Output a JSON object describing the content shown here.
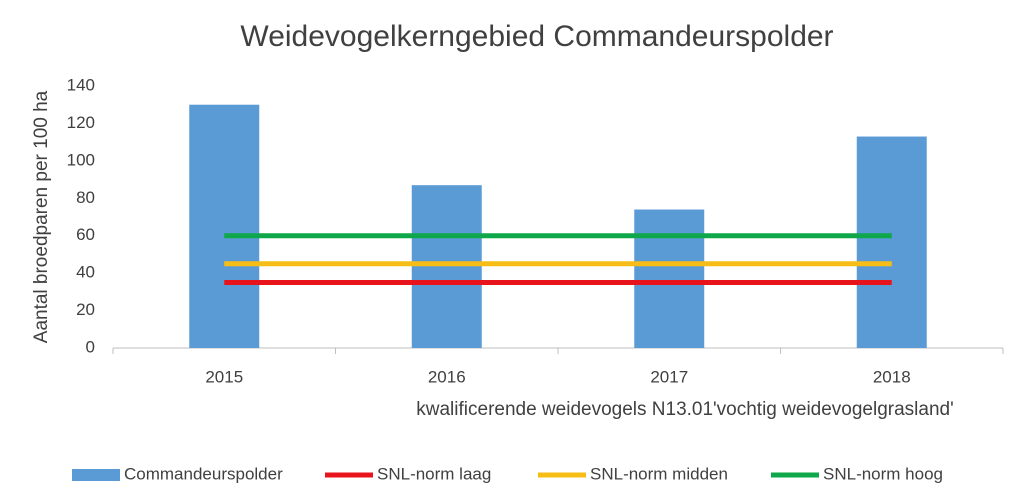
{
  "chart_data": {
    "type": "bar",
    "title": "Weidevogelkerngebied Commandeurspolder",
    "y_label": "Aantal broedparen per 100 ha",
    "x_label": "kwalificerende weidevogels N13.01'vochtig weidevogelgrasland'",
    "categories": [
      "2015",
      "2016",
      "2017",
      "2018"
    ],
    "series": [
      {
        "name": "Commandeurspolder",
        "type": "bar",
        "color": "#5b9bd5",
        "values": [
          130,
          87,
          74,
          113
        ]
      },
      {
        "name": "SNL-norm laag",
        "type": "line",
        "color": "#e8141b",
        "values": [
          35,
          35,
          35,
          35
        ]
      },
      {
        "name": "SNL-norm midden",
        "type": "line",
        "color": "#f6bd16",
        "values": [
          45,
          45,
          45,
          45
        ]
      },
      {
        "name": "SNL-norm hoog",
        "type": "line",
        "color": "#0ea84a",
        "values": [
          60,
          60,
          60,
          60
        ]
      }
    ],
    "ylim": [
      0,
      140
    ],
    "yticks": [
      0,
      20,
      40,
      60,
      80,
      100,
      120,
      140
    ],
    "grid": false,
    "legend": "bottom"
  }
}
